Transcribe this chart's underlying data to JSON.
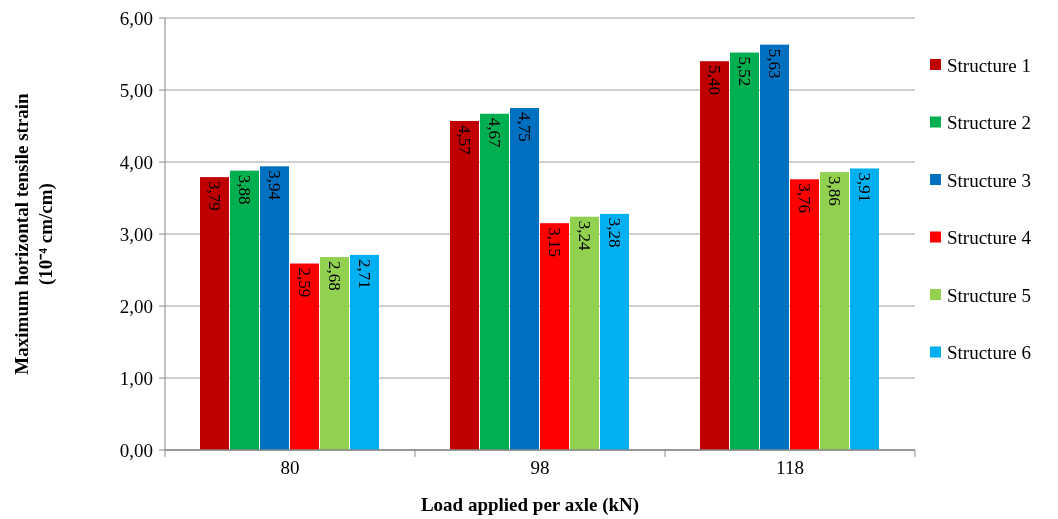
{
  "chart_data": {
    "type": "bar",
    "xlabel": "Load applied per axle (kN)",
    "ylabel": "Maximum horizontal tensile strain\n(10⁻⁴ cm/cm)",
    "categories": [
      "80",
      "98",
      "118"
    ],
    "series": [
      {
        "name": "Structure 1",
        "color": "#c00000",
        "values": [
          3.79,
          4.57,
          5.4
        ],
        "value_labels": [
          "3,79",
          "4,57",
          "5,40"
        ]
      },
      {
        "name": "Structure 2",
        "color": "#00b050",
        "values": [
          3.88,
          4.67,
          5.52
        ],
        "value_labels": [
          "3,88",
          "4,67",
          "5,52"
        ]
      },
      {
        "name": "Structure 3",
        "color": "#0070c0",
        "values": [
          3.94,
          4.75,
          5.63
        ],
        "value_labels": [
          "3,94",
          "4,75",
          "5,63"
        ]
      },
      {
        "name": "Structure 4",
        "color": "#ff0000",
        "values": [
          2.59,
          3.15,
          3.76
        ],
        "value_labels": [
          "2,59",
          "3,15",
          "3,76"
        ]
      },
      {
        "name": "Structure 5",
        "color": "#92d050",
        "values": [
          2.68,
          3.24,
          3.86
        ],
        "value_labels": [
          "2,68",
          "3,24",
          "3,86"
        ]
      },
      {
        "name": "Structure 6",
        "color": "#00b0f0",
        "values": [
          2.71,
          3.28,
          3.91
        ],
        "value_labels": [
          "2,71",
          "3,28",
          "3,91"
        ]
      }
    ],
    "ylim": [
      0,
      6
    ],
    "yticks": [
      {
        "value": 0,
        "label": "0,00"
      },
      {
        "value": 1,
        "label": "1,00"
      },
      {
        "value": 2,
        "label": "2,00"
      },
      {
        "value": 3,
        "label": "3,00"
      },
      {
        "value": 4,
        "label": "4,00"
      },
      {
        "value": 5,
        "label": "5,00"
      },
      {
        "value": 6,
        "label": "6,00"
      }
    ],
    "grid": "y",
    "legend": "right"
  }
}
